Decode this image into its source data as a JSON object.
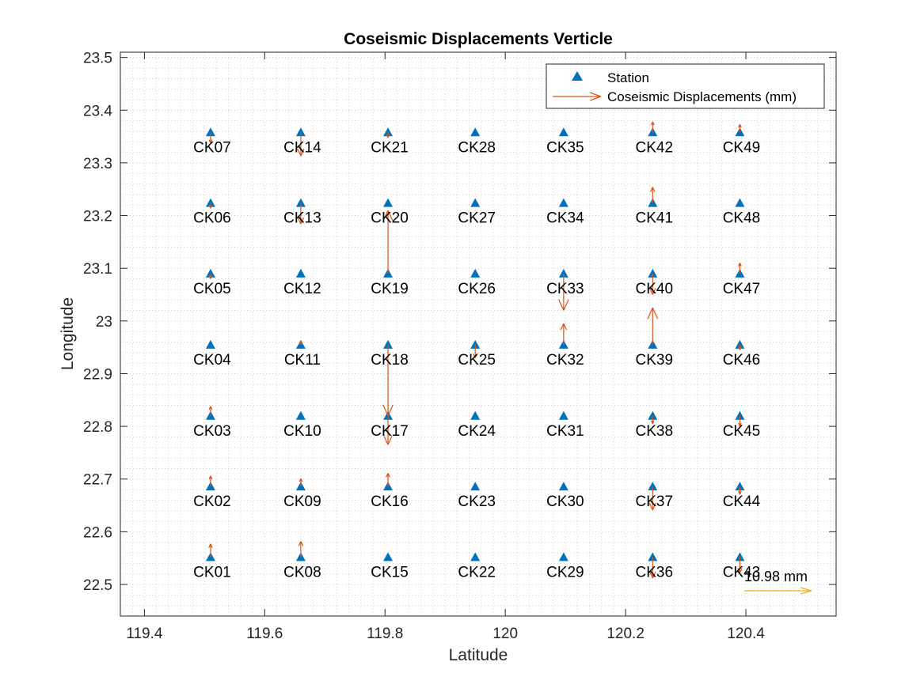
{
  "chart_data": {
    "type": "scatter",
    "title": "Coseismic Displacements Verticle",
    "xlabel": "Latitude",
    "ylabel": "Longitude",
    "xlim": [
      119.36,
      120.55
    ],
    "ylim": [
      22.44,
      23.51
    ],
    "xticks": [
      119.4,
      119.6,
      119.8,
      120,
      120.2,
      120.4
    ],
    "xtick_labels": [
      "119.4",
      "119.6",
      "119.8",
      "120",
      "120.2",
      "120.4"
    ],
    "yticks": [
      22.5,
      22.6,
      22.7,
      22.8,
      22.9,
      23,
      23.1,
      23.2,
      23.3,
      23.4,
      23.5
    ],
    "ytick_labels": [
      "22.5",
      "22.6",
      "22.7",
      "22.8",
      "22.9",
      "23",
      "23.1",
      "23.2",
      "23.3",
      "23.4",
      "23.5"
    ],
    "grid": "on (dotted, minor)",
    "legend": {
      "placement": "top-right",
      "entries": [
        {
          "label": "Station",
          "marker": "triangle"
        },
        {
          "label": "Coseismic Displacements (mm)",
          "marker": "arrow"
        }
      ]
    },
    "colors": {
      "station": "#0072BD",
      "displacement": "#D95319",
      "scale": "#EDB120"
    },
    "scale_arrow": {
      "label": "10.98 mm",
      "value_mm": 10.98
    },
    "stations": [
      {
        "name": "CK01",
        "x": 119.51,
        "y": 22.552,
        "dy": 0.025
      },
      {
        "name": "CK02",
        "x": 119.51,
        "y": 22.686,
        "dy": 0.02
      },
      {
        "name": "CK03",
        "x": 119.51,
        "y": 22.82,
        "dy": 0.018
      },
      {
        "name": "CK04",
        "x": 119.51,
        "y": 22.955,
        "dy": 0.0
      },
      {
        "name": "CK05",
        "x": 119.51,
        "y": 23.09,
        "dy": -0.01
      },
      {
        "name": "CK06",
        "x": 119.51,
        "y": 23.224,
        "dy": -0.01
      },
      {
        "name": "CK07",
        "x": 119.51,
        "y": 23.358,
        "dy": -0.02
      },
      {
        "name": "CK08",
        "x": 119.66,
        "y": 22.552,
        "dy": 0.03
      },
      {
        "name": "CK09",
        "x": 119.66,
        "y": 22.686,
        "dy": 0.015
      },
      {
        "name": "CK10",
        "x": 119.66,
        "y": 22.82,
        "dy": 0.0
      },
      {
        "name": "CK11",
        "x": 119.66,
        "y": 22.955,
        "dy": 0.006
      },
      {
        "name": "CK12",
        "x": 119.66,
        "y": 23.09,
        "dy": 0.0
      },
      {
        "name": "CK13",
        "x": 119.66,
        "y": 23.224,
        "dy": -0.04
      },
      {
        "name": "CK14",
        "x": 119.66,
        "y": 23.358,
        "dy": -0.045
      },
      {
        "name": "CK15",
        "x": 119.805,
        "y": 22.552,
        "dy": 0.0
      },
      {
        "name": "CK16",
        "x": 119.805,
        "y": 22.686,
        "dy": 0.025
      },
      {
        "name": "CK17",
        "x": 119.805,
        "y": 22.82,
        "dy": -0.055
      },
      {
        "name": "CK18",
        "x": 119.805,
        "y": 22.955,
        "dy": -0.135
      },
      {
        "name": "CK19",
        "x": 119.805,
        "y": 23.09,
        "dy": 0.12
      },
      {
        "name": "CK20",
        "x": 119.805,
        "y": 23.224,
        "dy": 0.0
      },
      {
        "name": "CK21",
        "x": 119.805,
        "y": 23.358,
        "dy": -0.01
      },
      {
        "name": "CK22",
        "x": 119.95,
        "y": 22.552,
        "dy": 0.0
      },
      {
        "name": "CK23",
        "x": 119.95,
        "y": 22.686,
        "dy": 0.0
      },
      {
        "name": "CK24",
        "x": 119.95,
        "y": 22.82,
        "dy": 0.0
      },
      {
        "name": "CK25",
        "x": 119.95,
        "y": 22.955,
        "dy": -0.025
      },
      {
        "name": "CK26",
        "x": 119.95,
        "y": 23.09,
        "dy": 0.0
      },
      {
        "name": "CK27",
        "x": 119.95,
        "y": 23.224,
        "dy": 0.0
      },
      {
        "name": "CK28",
        "x": 119.95,
        "y": 23.358,
        "dy": 0.0
      },
      {
        "name": "CK29",
        "x": 120.097,
        "y": 22.552,
        "dy": 0.0
      },
      {
        "name": "CK30",
        "x": 120.097,
        "y": 22.686,
        "dy": 0.0
      },
      {
        "name": "CK31",
        "x": 120.097,
        "y": 22.82,
        "dy": 0.0
      },
      {
        "name": "CK32",
        "x": 120.097,
        "y": 22.955,
        "dy": 0.04
      },
      {
        "name": "CK33",
        "x": 120.097,
        "y": 23.09,
        "dy": -0.07
      },
      {
        "name": "CK34",
        "x": 120.097,
        "y": 23.224,
        "dy": 0.0
      },
      {
        "name": "CK35",
        "x": 120.097,
        "y": 23.358,
        "dy": 0.0
      },
      {
        "name": "CK36",
        "x": 120.245,
        "y": 22.552,
        "dy": -0.04
      },
      {
        "name": "CK37",
        "x": 120.245,
        "y": 22.686,
        "dy": -0.045
      },
      {
        "name": "CK38",
        "x": 120.245,
        "y": 22.82,
        "dy": -0.015
      },
      {
        "name": "CK39",
        "x": 120.245,
        "y": 22.955,
        "dy": 0.07
      },
      {
        "name": "CK40",
        "x": 120.245,
        "y": 23.09,
        "dy": -0.04
      },
      {
        "name": "CK41",
        "x": 120.245,
        "y": 23.224,
        "dy": 0.03
      },
      {
        "name": "CK42",
        "x": 120.245,
        "y": 23.358,
        "dy": 0.02
      },
      {
        "name": "CK43",
        "x": 120.39,
        "y": 22.552,
        "dy": -0.03
      },
      {
        "name": "CK44",
        "x": 120.39,
        "y": 22.686,
        "dy": -0.015
      },
      {
        "name": "CK45",
        "x": 120.39,
        "y": 22.82,
        "dy": -0.02
      },
      {
        "name": "CK46",
        "x": 120.39,
        "y": 22.955,
        "dy": -0.01
      },
      {
        "name": "CK47",
        "x": 120.39,
        "y": 23.09,
        "dy": 0.02
      },
      {
        "name": "CK48",
        "x": 120.39,
        "y": 23.224,
        "dy": 0.0
      },
      {
        "name": "CK49",
        "x": 120.39,
        "y": 23.358,
        "dy": 0.015
      }
    ]
  }
}
